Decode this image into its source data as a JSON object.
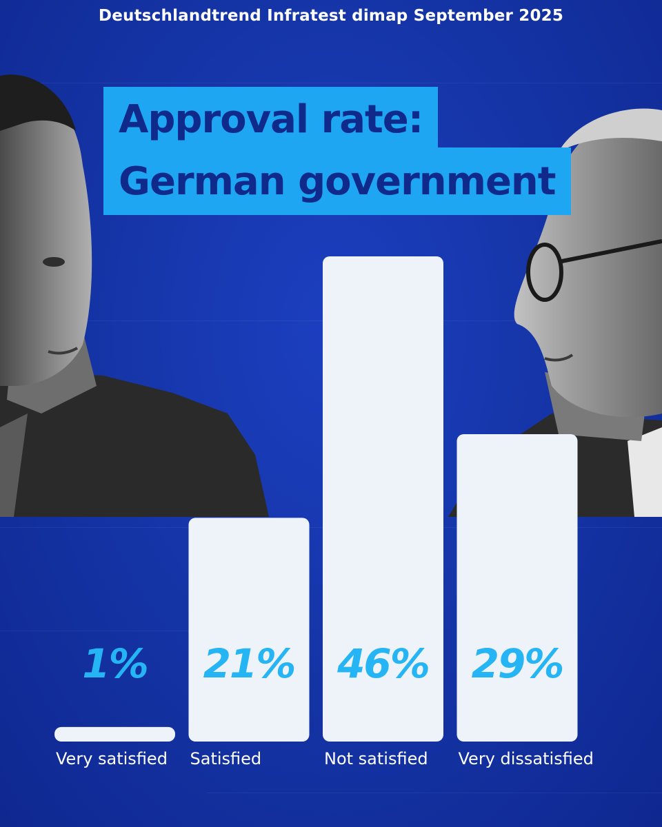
{
  "header": {
    "source": "Deutschlandtrend Infratest dimap September 2025"
  },
  "title": {
    "line1": "Approval rate:",
    "line2": "German government"
  },
  "colors": {
    "background": "#1535a8",
    "title_box": "#1ea6f2",
    "title_text": "#102a8c",
    "bar": "#eef3f9",
    "value_text": "#25b4f4",
    "label_text": "#ffffff"
  },
  "chart_data": {
    "type": "bar",
    "title": "Approval rate: German government",
    "categories": [
      "Very satisfied",
      "Satisfied",
      "Not satisfied",
      "Very dissatisfied"
    ],
    "values": [
      1,
      21,
      46,
      29
    ],
    "value_labels": [
      "1%",
      "21%",
      "46%",
      "29%"
    ],
    "unit": "%",
    "ylim": [
      0,
      46
    ],
    "grid": false,
    "legend": "none"
  }
}
